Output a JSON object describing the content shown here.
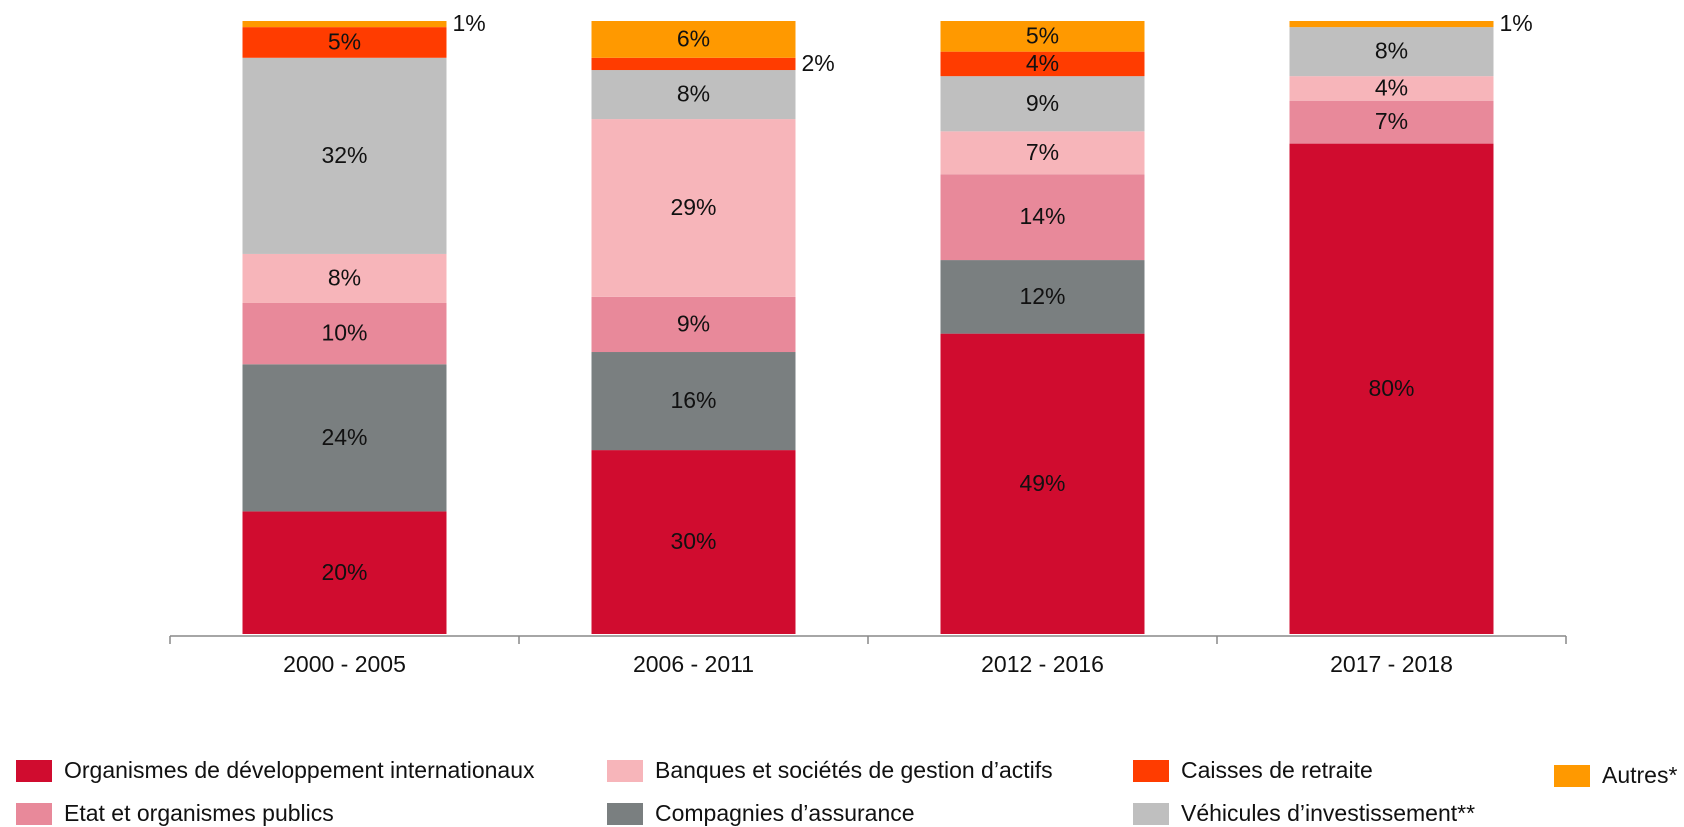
{
  "chart_data": {
    "type": "stacked_bar",
    "categories": [
      "2000 - 2005",
      "2006 - 2011",
      "2012 - 2016",
      "2017 - 2018"
    ],
    "ylim": [
      0,
      100
    ],
    "series": [
      {
        "name": "Organismes de développement internationaux",
        "color": "#d00c2f",
        "values": [
          20,
          30,
          49,
          80
        ],
        "value_labels": [
          "20%",
          "30%",
          "49%",
          "80%"
        ]
      },
      {
        "name": "Compagnies d’assurance",
        "color": "#7a7f80",
        "values": [
          24,
          16,
          12,
          null
        ],
        "value_labels": [
          "24%",
          "16%",
          "12%",
          null
        ]
      },
      {
        "name": "Etat et organismes publics",
        "color": "#e8899a",
        "values": [
          10,
          9,
          14,
          7
        ],
        "value_labels": [
          "10%",
          "9%",
          "14%",
          "7%"
        ]
      },
      {
        "name": "Banques et sociétés de gestion d’actifs",
        "color": "#f7b5ba",
        "values": [
          8,
          29,
          7,
          4
        ],
        "value_labels": [
          "8%",
          "29%",
          "7%",
          "4%"
        ]
      },
      {
        "name": "Véhicules d’investissement**",
        "color": "#bfbfbf",
        "values": [
          32,
          8,
          9,
          8
        ],
        "value_labels": [
          "32%",
          "8%",
          "9%",
          "8%"
        ]
      },
      {
        "name": "Caisses de retraite",
        "color": "#ff3c00",
        "values": [
          5,
          2,
          4,
          null
        ],
        "value_labels": [
          "5%",
          "2%",
          "4%",
          null
        ]
      },
      {
        "name": "Autres*",
        "color": "#ff9900",
        "values": [
          1,
          6,
          5,
          1
        ],
        "value_labels": [
          "1%",
          "6%",
          "5%",
          "1%"
        ]
      }
    ]
  }
}
